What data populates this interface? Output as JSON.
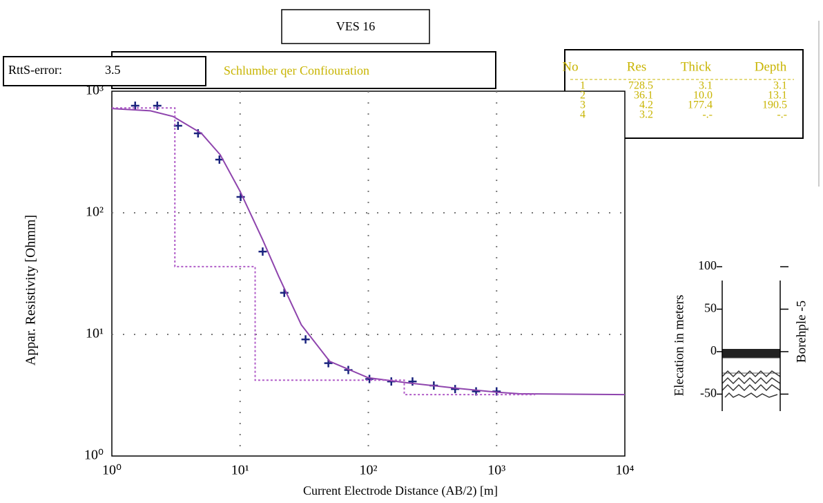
{
  "chart_data": {
    "type": "scatter",
    "title": "VES 16",
    "subtitle": "Schlumber qer Confiouration",
    "x_label": "Current Electrode Distance (AB/2) [m]",
    "y_label": "Appar. Resistivity [Ohmm]",
    "log_x": true,
    "log_y": true,
    "grid": true,
    "xlim": [
      1,
      10000
    ],
    "ylim": [
      1,
      1000
    ],
    "xticks": [
      {
        "value": 1,
        "label": "10⁰"
      },
      {
        "value": 10,
        "label": "10¹"
      },
      {
        "value": 100,
        "label": "10²"
      },
      {
        "value": 1000,
        "label": "10³"
      },
      {
        "value": 10000,
        "label": "10⁴"
      }
    ],
    "yticks": [
      {
        "value": 1,
        "label": "10⁰"
      },
      {
        "value": 10,
        "label": "10¹"
      },
      {
        "value": 100,
        "label": "10²"
      },
      {
        "value": 1000,
        "label": "10³"
      }
    ],
    "series": [
      {
        "type": "scatter",
        "color": "#1a237e",
        "x": [
          1.52,
          2.26,
          3.28,
          4.7,
          6.9,
          10.1,
          15,
          22.1,
          32.4,
          48.8,
          69.8,
          102,
          151,
          221,
          324,
          475,
          692,
          1000
        ],
        "values": [
          760,
          760,
          520,
          450,
          274,
          135,
          48,
          22,
          9.1,
          5.8,
          5.1,
          4.3,
          4.1,
          4.1,
          3.8,
          3.55,
          3.4,
          3.4
        ]
      },
      {
        "type": "line",
        "color": "#8e44ad",
        "x": [
          1,
          2,
          3,
          5,
          7,
          10,
          15,
          20,
          30,
          50,
          100,
          200,
          500,
          1000,
          1500,
          10000
        ],
        "values": [
          720,
          690,
          620,
          450,
          300,
          150,
          60,
          30,
          12,
          6,
          4.4,
          4.0,
          3.6,
          3.35,
          3.25,
          3.2
        ]
      },
      {
        "type": "line",
        "dashed": true,
        "color": "#b05cc8",
        "x": [
          1,
          3.1,
          3.1,
          13.1,
          13.1,
          190.5,
          190.5,
          2000
        ],
        "values": [
          728.5,
          728.5,
          36.1,
          36.1,
          4.2,
          4.2,
          3.2,
          3.2
        ]
      }
    ]
  },
  "error_box": {
    "label": "RttS-error:",
    "value": 3.5
  },
  "layer_table": {
    "columns": [
      "No",
      "Res",
      "Thick",
      "Depth"
    ],
    "rows": [
      [
        "1",
        "728.5",
        "3.1",
        "3.1"
      ],
      [
        "2",
        "36.1",
        "10.0",
        "13.1"
      ],
      [
        "3",
        "4.2",
        "177.4",
        "190.5"
      ],
      [
        "4",
        "3.2",
        "-.-",
        "-.-"
      ]
    ]
  },
  "borehole": {
    "title": "Borehple -5",
    "y_label": "Elecation in meters",
    "ylim": [
      -70,
      100
    ],
    "yticks": [
      100,
      50,
      0,
      -50
    ]
  }
}
